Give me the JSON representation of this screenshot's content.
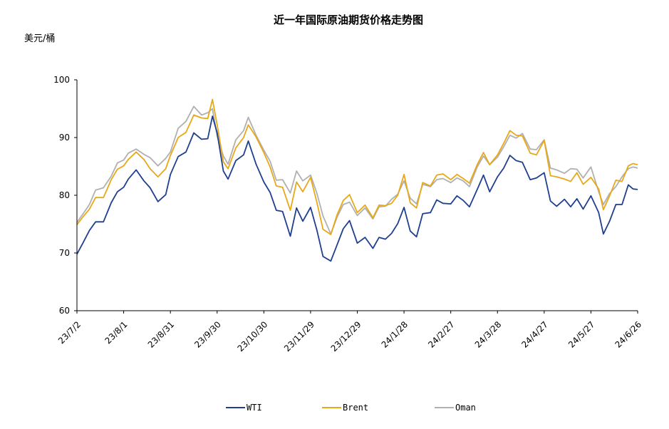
{
  "chart_data": {
    "type": "line",
    "title": "近一年国际原油期货价格走势图",
    "ylabel": "美元/桶",
    "ylim": [
      60,
      100
    ],
    "yticks": [
      60,
      70,
      80,
      90,
      100
    ],
    "x_start": "23/7/2",
    "x_end": "24/6/26",
    "xtick_labels": [
      "23/7/2",
      "23/8/1",
      "23/8/31",
      "23/9/30",
      "23/10/30",
      "23/11/29",
      "23/12/29",
      "24/1/28",
      "24/2/27",
      "24/3/28",
      "24/4/27",
      "24/5/27",
      "24/6/26"
    ],
    "legend_position": "bottom",
    "grid": false,
    "series": [
      {
        "name": "WTI",
        "color": "#1f3f8f",
        "values": [
          [
            "23/7/2",
            69.8
          ],
          [
            "23/7/6",
            71.8
          ],
          [
            "23/7/10",
            73.9
          ],
          [
            "23/7/14",
            75.4
          ],
          [
            "23/7/19",
            75.4
          ],
          [
            "23/7/24",
            78.7
          ],
          [
            "23/7/28",
            80.6
          ],
          [
            "23/8/1",
            81.4
          ],
          [
            "23/8/4",
            82.8
          ],
          [
            "23/8/9",
            84.4
          ],
          [
            "23/8/14",
            82.5
          ],
          [
            "23/8/18",
            81.3
          ],
          [
            "23/8/23",
            78.9
          ],
          [
            "23/8/28",
            80.1
          ],
          [
            "23/8/31",
            83.6
          ],
          [
            "23/9/5",
            86.7
          ],
          [
            "23/9/10",
            87.5
          ],
          [
            "23/9/15",
            90.8
          ],
          [
            "23/9/20",
            89.7
          ],
          [
            "23/9/24",
            89.8
          ],
          [
            "23/9/27",
            93.7
          ],
          [
            "23/9/30",
            90.8
          ],
          [
            "23/10/4",
            84.2
          ],
          [
            "23/10/7",
            82.8
          ],
          [
            "23/10/12",
            86.0
          ],
          [
            "23/10/17",
            87.0
          ],
          [
            "23/10/20",
            89.4
          ],
          [
            "23/10/25",
            85.4
          ],
          [
            "23/10/30",
            82.3
          ],
          [
            "23/11/3",
            80.5
          ],
          [
            "23/11/7",
            77.4
          ],
          [
            "23/11/11",
            77.2
          ],
          [
            "23/11/16",
            72.9
          ],
          [
            "23/11/20",
            77.8
          ],
          [
            "23/11/24",
            75.5
          ],
          [
            "23/11/29",
            77.9
          ],
          [
            "23/12/3",
            74.0
          ],
          [
            "23/12/7",
            69.4
          ],
          [
            "23/12/12",
            68.6
          ],
          [
            "23/12/16",
            71.4
          ],
          [
            "23/12/20",
            74.2
          ],
          [
            "23/12/24",
            75.6
          ],
          [
            "23/12/29",
            71.7
          ],
          [
            "24/1/3",
            72.7
          ],
          [
            "24/1/8",
            70.8
          ],
          [
            "24/1/12",
            72.7
          ],
          [
            "24/1/16",
            72.4
          ],
          [
            "24/1/20",
            73.4
          ],
          [
            "24/1/24",
            75.1
          ],
          [
            "24/1/28",
            77.9
          ],
          [
            "24/2/1",
            73.8
          ],
          [
            "24/2/5",
            72.8
          ],
          [
            "24/2/9",
            76.8
          ],
          [
            "24/2/14",
            77.0
          ],
          [
            "24/2/18",
            79.2
          ],
          [
            "24/2/22",
            78.6
          ],
          [
            "24/2/27",
            78.5
          ],
          [
            "24/3/2",
            79.9
          ],
          [
            "24/3/6",
            79.1
          ],
          [
            "24/3/10",
            78.0
          ],
          [
            "24/3/15",
            81.0
          ],
          [
            "24/3/19",
            83.5
          ],
          [
            "24/3/23",
            80.6
          ],
          [
            "24/3/28",
            83.2
          ],
          [
            "24/4/1",
            84.7
          ],
          [
            "24/4/5",
            86.9
          ],
          [
            "24/4/9",
            86.0
          ],
          [
            "24/4/13",
            85.7
          ],
          [
            "24/4/18",
            82.7
          ],
          [
            "24/4/22",
            83.0
          ],
          [
            "24/4/27",
            83.9
          ],
          [
            "24/5/1",
            79.0
          ],
          [
            "24/5/5",
            78.1
          ],
          [
            "24/5/10",
            79.3
          ],
          [
            "24/5/14",
            78.0
          ],
          [
            "24/5/18",
            79.4
          ],
          [
            "24/5/22",
            77.6
          ],
          [
            "24/5/27",
            79.9
          ],
          [
            "24/6/1",
            77.0
          ],
          [
            "24/6/4",
            73.3
          ],
          [
            "24/6/8",
            75.5
          ],
          [
            "24/6/12",
            78.4
          ],
          [
            "24/6/16",
            78.4
          ],
          [
            "24/6/20",
            81.8
          ],
          [
            "24/6/23",
            81.1
          ],
          [
            "24/6/26",
            81.0
          ]
        ]
      },
      {
        "name": "Brent",
        "color": "#e8a817",
        "values": [
          [
            "23/7/2",
            74.9
          ],
          [
            "23/7/6",
            76.3
          ],
          [
            "23/7/10",
            77.6
          ],
          [
            "23/7/14",
            79.6
          ],
          [
            "23/7/19",
            79.6
          ],
          [
            "23/7/24",
            82.7
          ],
          [
            "23/7/28",
            84.5
          ],
          [
            "23/8/1",
            85.1
          ],
          [
            "23/8/4",
            86.2
          ],
          [
            "23/8/9",
            87.5
          ],
          [
            "23/8/14",
            86.2
          ],
          [
            "23/8/18",
            84.6
          ],
          [
            "23/8/23",
            83.2
          ],
          [
            "23/8/28",
            84.6
          ],
          [
            "23/8/31",
            86.9
          ],
          [
            "23/9/5",
            90.0
          ],
          [
            "23/9/10",
            90.9
          ],
          [
            "23/9/15",
            93.9
          ],
          [
            "23/9/20",
            93.4
          ],
          [
            "23/9/24",
            93.3
          ],
          [
            "23/9/27",
            96.6
          ],
          [
            "23/9/30",
            92.2
          ],
          [
            "23/10/4",
            85.8
          ],
          [
            "23/10/7",
            84.6
          ],
          [
            "23/10/12",
            88.2
          ],
          [
            "23/10/17",
            90.0
          ],
          [
            "23/10/20",
            92.2
          ],
          [
            "23/10/25",
            90.1
          ],
          [
            "23/10/30",
            87.4
          ],
          [
            "23/11/3",
            84.9
          ],
          [
            "23/11/7",
            81.6
          ],
          [
            "23/11/11",
            81.4
          ],
          [
            "23/11/16",
            77.4
          ],
          [
            "23/11/20",
            82.3
          ],
          [
            "23/11/24",
            80.6
          ],
          [
            "23/11/29",
            83.1
          ],
          [
            "23/12/3",
            78.8
          ],
          [
            "23/12/7",
            74.1
          ],
          [
            "23/12/12",
            73.2
          ],
          [
            "23/12/16",
            76.6
          ],
          [
            "23/12/20",
            79.1
          ],
          [
            "23/12/24",
            80.1
          ],
          [
            "23/12/29",
            77.0
          ],
          [
            "24/1/3",
            78.3
          ],
          [
            "24/1/8",
            76.1
          ],
          [
            "24/1/12",
            78.3
          ],
          [
            "24/1/16",
            78.2
          ],
          [
            "24/1/20",
            78.6
          ],
          [
            "24/1/24",
            80.0
          ],
          [
            "24/1/28",
            83.6
          ],
          [
            "24/2/1",
            78.7
          ],
          [
            "24/2/5",
            77.8
          ],
          [
            "24/2/9",
            82.2
          ],
          [
            "24/2/14",
            81.6
          ],
          [
            "24/2/18",
            83.5
          ],
          [
            "24/2/22",
            83.7
          ],
          [
            "24/2/27",
            82.7
          ],
          [
            "24/3/2",
            83.6
          ],
          [
            "24/3/6",
            82.9
          ],
          [
            "24/3/10",
            82.1
          ],
          [
            "24/3/15",
            85.3
          ],
          [
            "24/3/19",
            87.4
          ],
          [
            "24/3/23",
            85.3
          ],
          [
            "24/3/28",
            87.0
          ],
          [
            "24/4/1",
            89.0
          ],
          [
            "24/4/5",
            91.2
          ],
          [
            "24/4/9",
            90.4
          ],
          [
            "24/4/13",
            90.3
          ],
          [
            "24/4/18",
            87.3
          ],
          [
            "24/4/22",
            87.0
          ],
          [
            "24/4/27",
            89.5
          ],
          [
            "24/5/1",
            83.4
          ],
          [
            "24/5/5",
            83.2
          ],
          [
            "24/5/10",
            82.8
          ],
          [
            "24/5/14",
            82.4
          ],
          [
            "24/5/18",
            83.9
          ],
          [
            "24/5/22",
            81.9
          ],
          [
            "24/5/27",
            83.1
          ],
          [
            "24/6/1",
            81.1
          ],
          [
            "24/6/4",
            77.5
          ],
          [
            "24/6/8",
            79.9
          ],
          [
            "24/6/12",
            82.6
          ],
          [
            "24/6/16",
            82.4
          ],
          [
            "24/6/20",
            85.1
          ],
          [
            "24/6/23",
            85.5
          ],
          [
            "24/6/26",
            85.3
          ]
        ]
      },
      {
        "name": "Oman",
        "color": "#b0b0b0",
        "values": [
          [
            "23/7/2",
            75.3
          ],
          [
            "23/7/6",
            76.8
          ],
          [
            "23/7/10",
            78.4
          ],
          [
            "23/7/14",
            80.9
          ],
          [
            "23/7/19",
            81.3
          ],
          [
            "23/7/24",
            83.3
          ],
          [
            "23/7/28",
            85.6
          ],
          [
            "23/8/1",
            86.1
          ],
          [
            "23/8/4",
            87.3
          ],
          [
            "23/8/9",
            88.0
          ],
          [
            "23/8/14",
            87.1
          ],
          [
            "23/8/18",
            86.5
          ],
          [
            "23/8/23",
            85.1
          ],
          [
            "23/8/28",
            86.4
          ],
          [
            "23/8/31",
            87.5
          ],
          [
            "23/9/5",
            91.6
          ],
          [
            "23/9/10",
            92.8
          ],
          [
            "23/9/15",
            95.4
          ],
          [
            "23/9/20",
            93.9
          ],
          [
            "23/9/24",
            94.3
          ],
          [
            "23/9/27",
            95.0
          ],
          [
            "23/9/30",
            90.2
          ],
          [
            "23/10/4",
            86.8
          ],
          [
            "23/10/7",
            85.4
          ],
          [
            "23/10/12",
            89.6
          ],
          [
            "23/10/17",
            91.2
          ],
          [
            "23/10/20",
            93.5
          ],
          [
            "23/10/25",
            90.4
          ],
          [
            "23/10/30",
            87.8
          ],
          [
            "23/11/3",
            85.9
          ],
          [
            "23/11/7",
            82.6
          ],
          [
            "23/11/11",
            82.7
          ],
          [
            "23/11/16",
            80.4
          ],
          [
            "23/11/20",
            84.2
          ],
          [
            "23/11/24",
            82.5
          ],
          [
            "23/11/29",
            83.5
          ],
          [
            "23/12/3",
            80.4
          ],
          [
            "23/12/7",
            76.4
          ],
          [
            "23/12/12",
            73.3
          ],
          [
            "23/12/16",
            76.2
          ],
          [
            "23/12/20",
            78.4
          ],
          [
            "23/12/24",
            78.8
          ],
          [
            "23/12/29",
            76.5
          ],
          [
            "24/1/3",
            77.8
          ],
          [
            "24/1/8",
            75.9
          ],
          [
            "24/1/12",
            78.0
          ],
          [
            "24/1/16",
            78.1
          ],
          [
            "24/1/20",
            79.3
          ],
          [
            "24/1/24",
            80.2
          ],
          [
            "24/1/28",
            82.5
          ],
          [
            "24/2/1",
            79.5
          ],
          [
            "24/2/5",
            78.5
          ],
          [
            "24/2/9",
            81.9
          ],
          [
            "24/2/14",
            81.5
          ],
          [
            "24/2/18",
            82.7
          ],
          [
            "24/2/22",
            82.9
          ],
          [
            "24/2/27",
            82.2
          ],
          [
            "24/3/2",
            83.0
          ],
          [
            "24/3/6",
            82.5
          ],
          [
            "24/3/10",
            81.5
          ],
          [
            "24/3/15",
            84.9
          ],
          [
            "24/3/19",
            86.8
          ],
          [
            "24/3/23",
            85.3
          ],
          [
            "24/3/28",
            86.6
          ],
          [
            "24/4/1",
            88.4
          ],
          [
            "24/4/5",
            90.4
          ],
          [
            "24/4/9",
            89.9
          ],
          [
            "24/4/13",
            90.7
          ],
          [
            "24/4/18",
            88.0
          ],
          [
            "24/4/22",
            87.9
          ],
          [
            "24/4/27",
            89.6
          ],
          [
            "24/5/1",
            84.7
          ],
          [
            "24/5/5",
            84.4
          ],
          [
            "24/5/10",
            83.8
          ],
          [
            "24/5/14",
            84.6
          ],
          [
            "24/5/18",
            84.5
          ],
          [
            "24/5/22",
            83.0
          ],
          [
            "24/5/27",
            84.9
          ],
          [
            "24/6/1",
            80.6
          ],
          [
            "24/6/4",
            78.4
          ],
          [
            "24/6/8",
            80.3
          ],
          [
            "24/6/12",
            81.5
          ],
          [
            "24/6/16",
            83.2
          ],
          [
            "24/6/20",
            84.6
          ],
          [
            "24/6/23",
            84.9
          ],
          [
            "24/6/26",
            84.7
          ]
        ]
      }
    ]
  }
}
